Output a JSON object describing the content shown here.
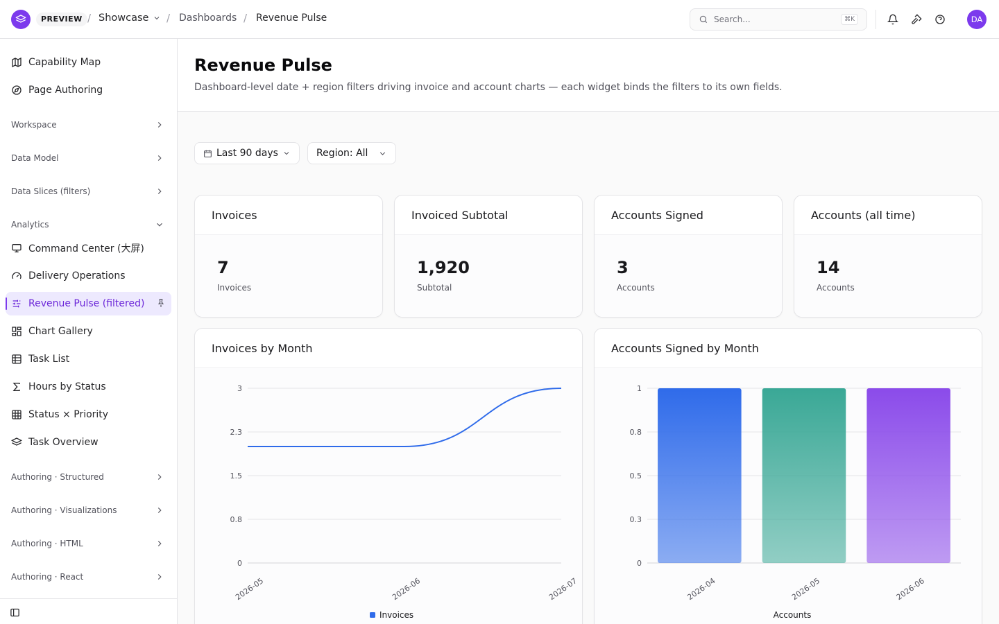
{
  "topbar": {
    "badge": "PREVIEW",
    "project": "Showcase",
    "breadcrumbs": [
      "Dashboards",
      "Revenue Pulse"
    ],
    "search_placeholder": "Search...",
    "search_shortcut": "⌘K",
    "avatar_initials": "DA"
  },
  "sidebar": {
    "top_items": [
      "Capability Map",
      "Page Authoring"
    ],
    "groups_collapsed": [
      "Workspace",
      "Data Model",
      "Data Slices (filters)"
    ],
    "analytics_group": "Analytics",
    "analytics_items": [
      "Command Center (大屏)",
      "Delivery Operations",
      "Revenue Pulse (filtered)",
      "Chart Gallery",
      "Task List",
      "Hours by Status",
      "Status × Priority",
      "Task Overview"
    ],
    "bottom_groups": [
      "Authoring · Structured",
      "Authoring · Visualizations",
      "Authoring · HTML",
      "Authoring · React"
    ]
  },
  "page": {
    "title": "Revenue Pulse",
    "subtitle": "Dashboard-level date + region filters driving invoice and account charts — each widget binds the filters to its own fields."
  },
  "filters": {
    "date_range": "Last 90 days",
    "region": "Region: All"
  },
  "kpis": [
    {
      "title": "Invoices",
      "value": "7",
      "label": "Invoices"
    },
    {
      "title": "Invoiced Subtotal",
      "value": "1,920",
      "label": "Subtotal"
    },
    {
      "title": "Accounts Signed",
      "value": "3",
      "label": "Accounts"
    },
    {
      "title": "Accounts (all time)",
      "value": "14",
      "label": "Accounts"
    }
  ],
  "charts": {
    "line_title": "Invoices by Month",
    "bar_title": "Accounts Signed by Month"
  },
  "colors": {
    "accent": "#7c3aed",
    "line": "#2f6bea",
    "bar_blue": "#2f6bea",
    "bar_teal": "#3aa896",
    "bar_purple": "#8b4bea"
  },
  "chart_data": [
    {
      "type": "line",
      "title": "Invoices by Month",
      "x": [
        "2026-05",
        "2026-06",
        "2026-07"
      ],
      "y_ticks": [
        "0",
        "0.8",
        "1.5",
        "2.3",
        "3"
      ],
      "ylim": [
        0,
        3
      ],
      "series": [
        {
          "name": "Invoices",
          "values": [
            2,
            2,
            3
          ]
        }
      ],
      "legend": "bottom",
      "grid": true
    },
    {
      "type": "bar",
      "title": "Accounts Signed by Month",
      "categories": [
        "2026-04",
        "2026-05",
        "2026-06"
      ],
      "y_ticks": [
        "0",
        "0.3",
        "0.5",
        "0.8",
        "1"
      ],
      "ylim": [
        0,
        1
      ],
      "series": [
        {
          "name": "Accounts",
          "values": [
            1,
            1,
            1
          ]
        }
      ],
      "legend": "bottom",
      "grid": true
    }
  ]
}
